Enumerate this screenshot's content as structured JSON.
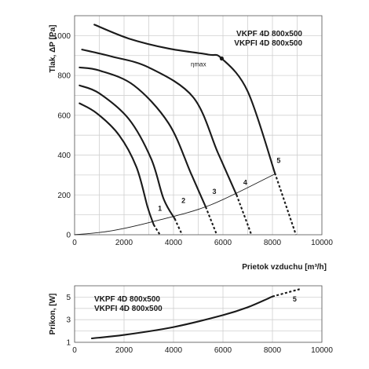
{
  "chart_data": [
    {
      "type": "line",
      "xlabel": "Prietok vzduchu  [m³/h]",
      "ylabel": "Tlak, ΔP [Pa]",
      "legend": [
        "VKPF 4D 800x500",
        "VKPFI 4D 800x500"
      ],
      "legend_position": "top-right",
      "xlim": [
        0,
        10000
      ],
      "ylim": [
        0,
        1100
      ],
      "xticks": [
        "0",
        "2000",
        "4000",
        "6000",
        "8000",
        "10000"
      ],
      "yticks": [
        "0",
        "200",
        "400",
        "600",
        "800",
        "1000"
      ],
      "grid": true,
      "annotation": {
        "text": "ηmax",
        "x": 4700,
        "y": 845
      },
      "marker_point": {
        "x": 5950,
        "y": 885
      },
      "series": [
        {
          "name": "1",
          "solid": [
            [
              200,
              660
            ],
            [
              900,
              610
            ],
            [
              1800,
              500
            ],
            [
              2500,
              340
            ],
            [
              2950,
              140
            ],
            [
              3200,
              50
            ]
          ],
          "dashed": [
            [
              3200,
              50
            ],
            [
              3450,
              0
            ]
          ]
        },
        {
          "name": "2",
          "solid": [
            [
              200,
              750
            ],
            [
              1000,
              710
            ],
            [
              2200,
              580
            ],
            [
              3100,
              380
            ],
            [
              3600,
              180
            ],
            [
              4050,
              80
            ]
          ],
          "dashed": [
            [
              4050,
              80
            ],
            [
              4350,
              0
            ]
          ]
        },
        {
          "name": "3",
          "solid": [
            [
              200,
              840
            ],
            [
              1000,
              825
            ],
            [
              2400,
              750
            ],
            [
              3800,
              560
            ],
            [
              4700,
              310
            ],
            [
              5300,
              140
            ]
          ],
          "dashed": [
            [
              5300,
              140
            ],
            [
              5750,
              0
            ]
          ]
        },
        {
          "name": "4",
          "solid": [
            [
              300,
              930
            ],
            [
              1500,
              895
            ],
            [
              3000,
              840
            ],
            [
              4800,
              690
            ],
            [
              5800,
              410
            ],
            [
              6550,
              200
            ]
          ],
          "dashed": [
            [
              6550,
              200
            ],
            [
              7150,
              0
            ]
          ]
        },
        {
          "name": "5",
          "solid": [
            [
              800,
              1055
            ],
            [
              2200,
              985
            ],
            [
              3800,
              935
            ],
            [
              5400,
              905
            ],
            [
              5950,
              885
            ],
            [
              7000,
              720
            ],
            [
              8100,
              310
            ]
          ],
          "dashed": [
            [
              8100,
              310
            ],
            [
              8950,
              0
            ]
          ]
        },
        {
          "name": "",
          "style": "thin",
          "solid": [
            [
              0,
              0
            ],
            [
              1500,
              20
            ],
            [
              3300,
              70
            ],
            [
              5500,
              150
            ],
            [
              8100,
              305
            ]
          ]
        }
      ],
      "curve_labels": [
        {
          "text": "1",
          "x": 3450,
          "y": 120
        },
        {
          "text": "2",
          "x": 4400,
          "y": 160
        },
        {
          "text": "3",
          "x": 5650,
          "y": 205
        },
        {
          "text": "4",
          "x": 6900,
          "y": 250
        },
        {
          "text": "5",
          "x": 8250,
          "y": 360
        }
      ]
    },
    {
      "type": "line",
      "xlabel": "",
      "ylabel": "Príkon, [W]",
      "legend": [
        "VKPF 4D 800x500",
        "VKPFI 4D 800x500"
      ],
      "legend_position": "top-left",
      "xlim": [
        0,
        10000
      ],
      "ylim": [
        1,
        6
      ],
      "xticks": [
        "0",
        "2000",
        "4000",
        "6000",
        "8000",
        "10000"
      ],
      "yticks": [
        "1",
        "3",
        "5"
      ],
      "grid": true,
      "series": [
        {
          "name": "5",
          "solid": [
            [
              700,
              1.35
            ],
            [
              2000,
              1.65
            ],
            [
              4000,
              2.35
            ],
            [
              6000,
              3.4
            ],
            [
              7000,
              4.1
            ],
            [
              8000,
              5.05
            ]
          ],
          "dashed": [
            [
              8000,
              5.05
            ],
            [
              9100,
              5.7
            ]
          ]
        }
      ],
      "curve_labels": [
        {
          "text": "5",
          "x": 8900,
          "y": 4.6
        }
      ]
    }
  ]
}
